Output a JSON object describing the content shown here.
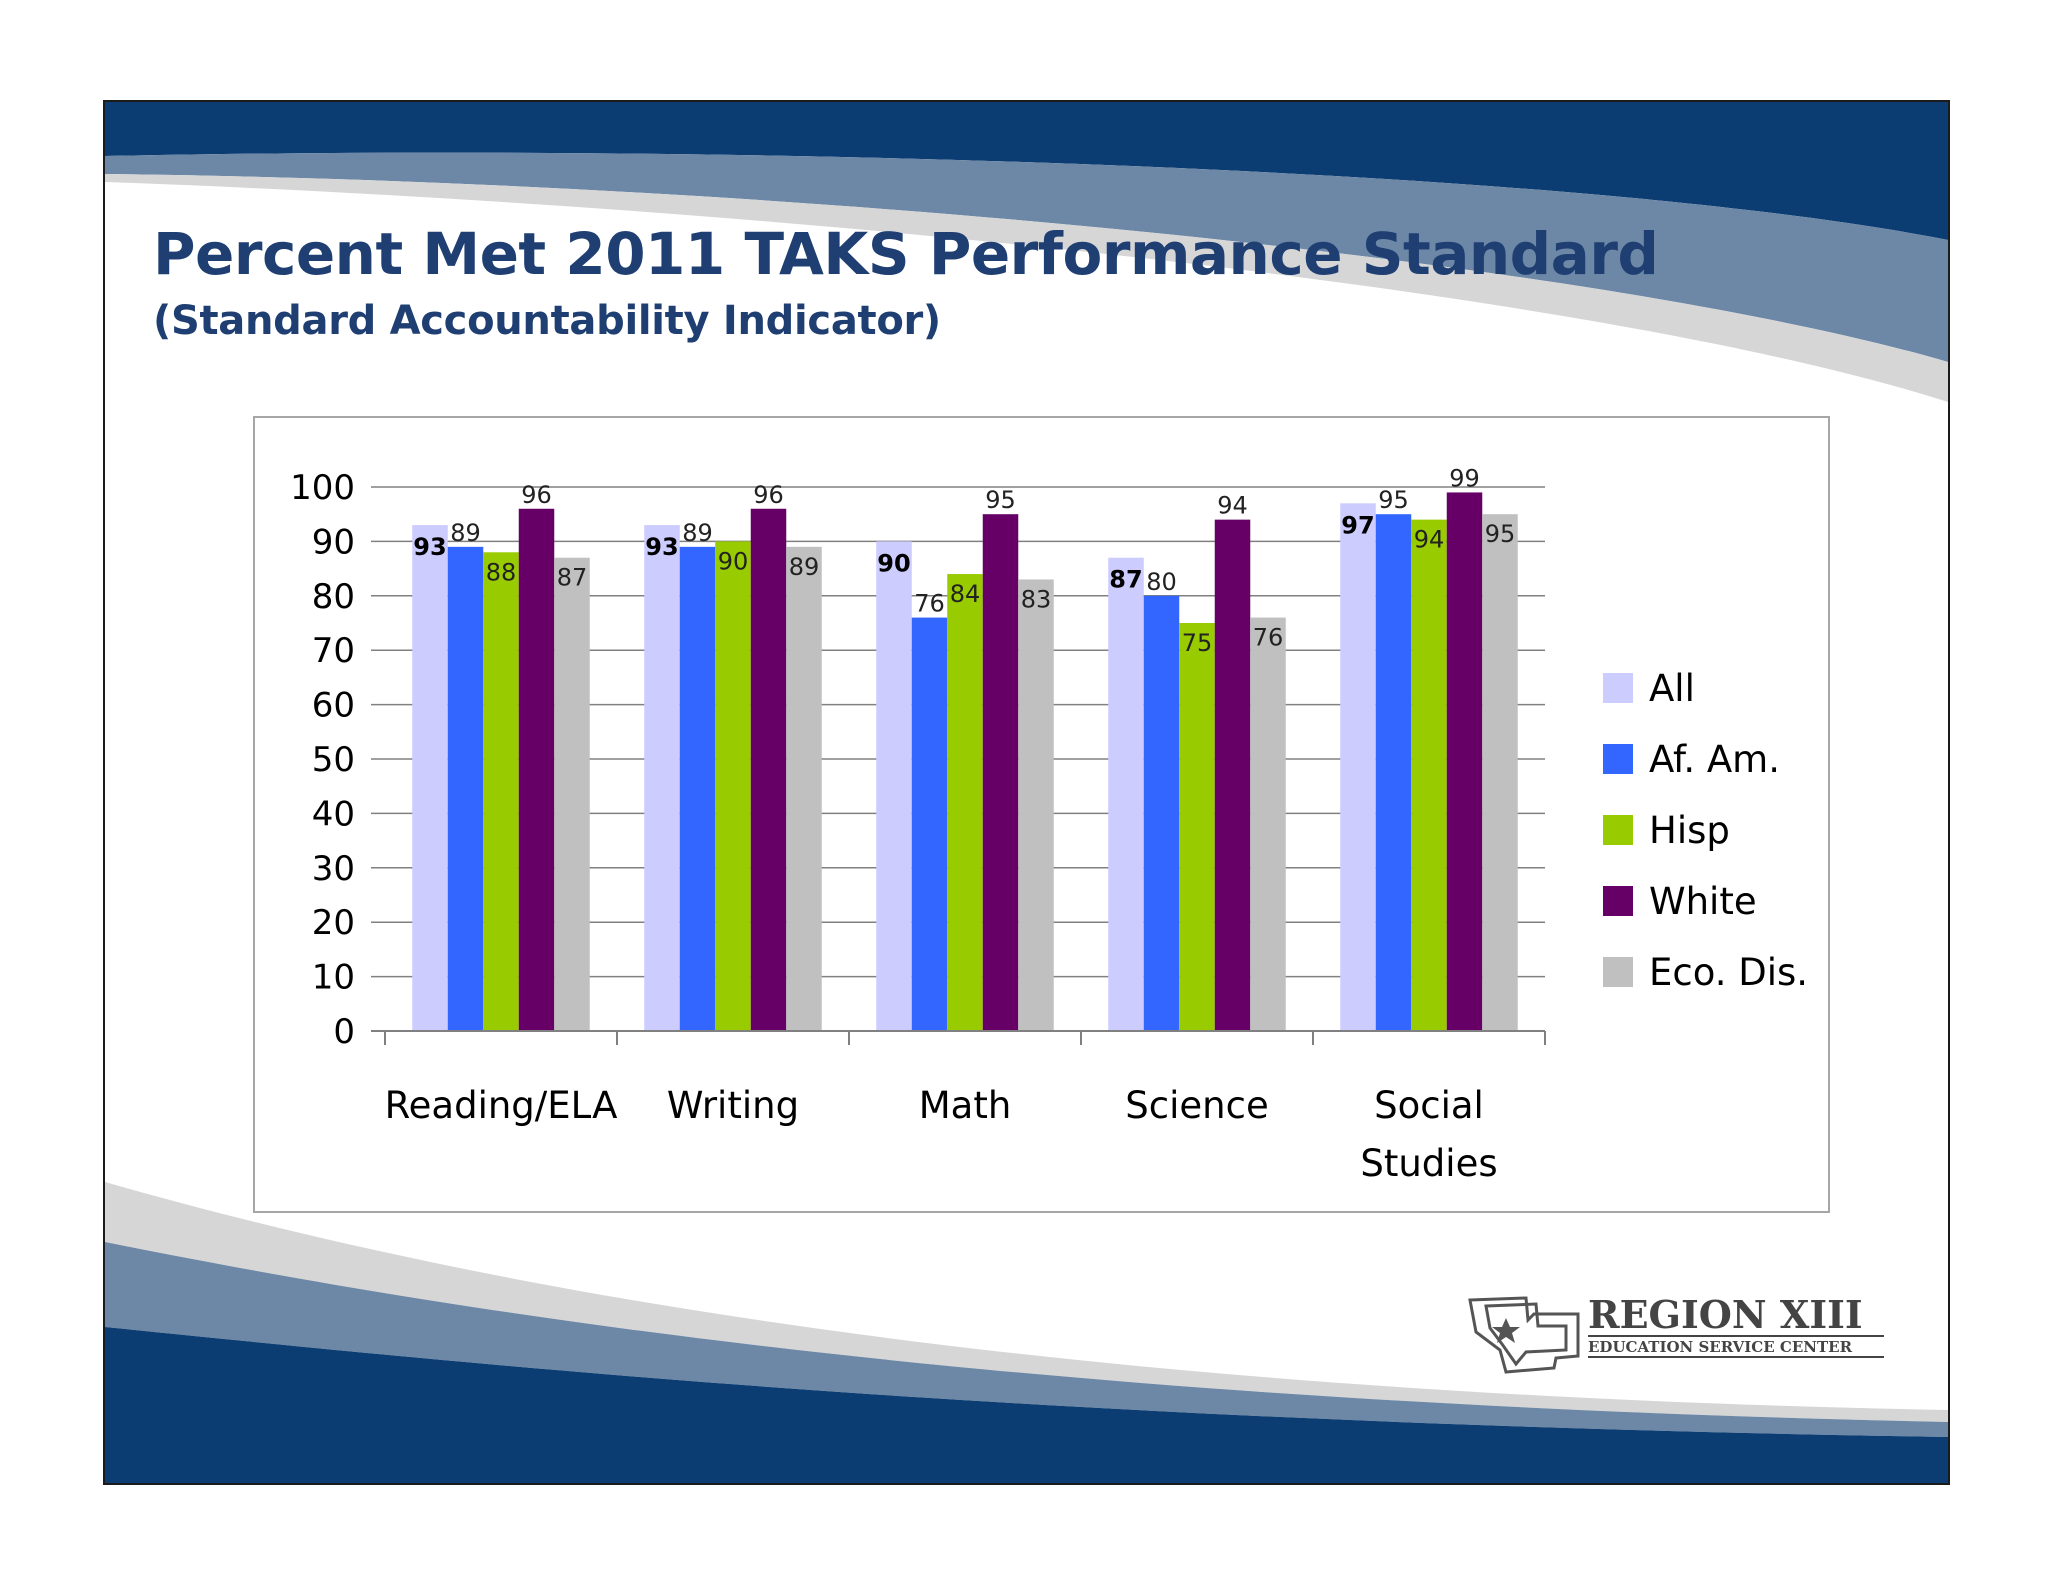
{
  "slide": {
    "title": "Percent Met 2011 TAKS Performance Standard",
    "subtitle": "(Standard Accountability Indicator)"
  },
  "logo": {
    "name": "REGION XIII",
    "tagline": "EDUCATION SERVICE CENTER"
  },
  "colors": {
    "title": "#1f3f73",
    "band_dark": "#0c3d72",
    "band_light": "#6d88a6"
  },
  "chart_data": {
    "type": "bar",
    "title": "",
    "xlabel": "",
    "ylabel": "",
    "ylim": [
      0,
      100
    ],
    "yticks": [
      "0",
      "10",
      "20",
      "30",
      "40",
      "50",
      "60",
      "70",
      "80",
      "90",
      "100"
    ],
    "grid": true,
    "legend_position": "right",
    "categories": [
      [
        "Reading/ELA"
      ],
      [
        "Writing"
      ],
      [
        "Math"
      ],
      [
        "Science"
      ],
      [
        "Social",
        "Studies"
      ]
    ],
    "series": [
      {
        "name": "All",
        "color": "#ccccff",
        "values": [
          93,
          93,
          90,
          87,
          97
        ],
        "label_bold": true
      },
      {
        "name": "Af. Am.",
        "color": "#3366ff",
        "values": [
          89,
          89,
          76,
          80,
          95
        ],
        "label_bold": false
      },
      {
        "name": "Hisp",
        "color": "#99cc00",
        "values": [
          88,
          90,
          84,
          75,
          94
        ],
        "label_bold": false
      },
      {
        "name": "White",
        "color": "#660066",
        "values": [
          96,
          96,
          95,
          94,
          99
        ],
        "label_bold": false
      },
      {
        "name": "Eco. Dis.",
        "color": "#c0c0c0",
        "values": [
          87,
          89,
          83,
          76,
          95
        ],
        "label_bold": false
      }
    ]
  }
}
